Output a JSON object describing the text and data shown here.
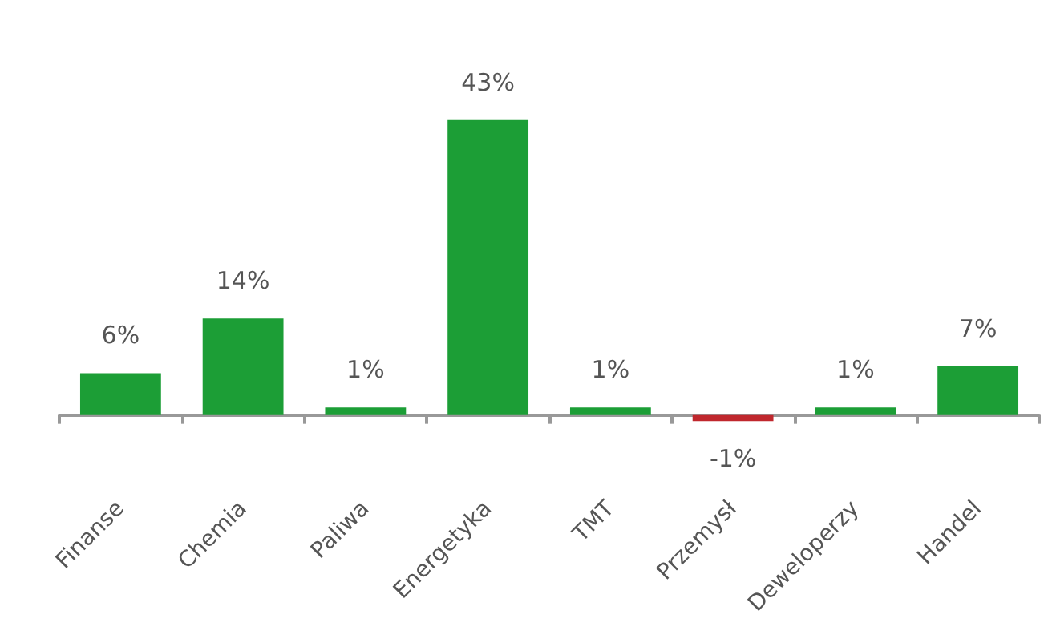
{
  "chart_data": {
    "type": "bar",
    "categories": [
      "Finanse",
      "Chemia",
      "Paliwa",
      "Energetyka",
      "TMT",
      "Przemysł",
      "Deweloperzy",
      "Handel"
    ],
    "values": [
      6,
      14,
      1,
      43,
      1,
      -1,
      1,
      7
    ],
    "colors": [
      "#1c9e36",
      "#1c9e36",
      "#1c9e36",
      "#1c9e36",
      "#1c9e36",
      "#c0272d",
      "#1c9e36",
      "#1c9e36"
    ],
    "value_labels": [
      "6%",
      "14%",
      "1%",
      "43%",
      "1%",
      "-1%",
      "1%",
      "7%"
    ]
  }
}
